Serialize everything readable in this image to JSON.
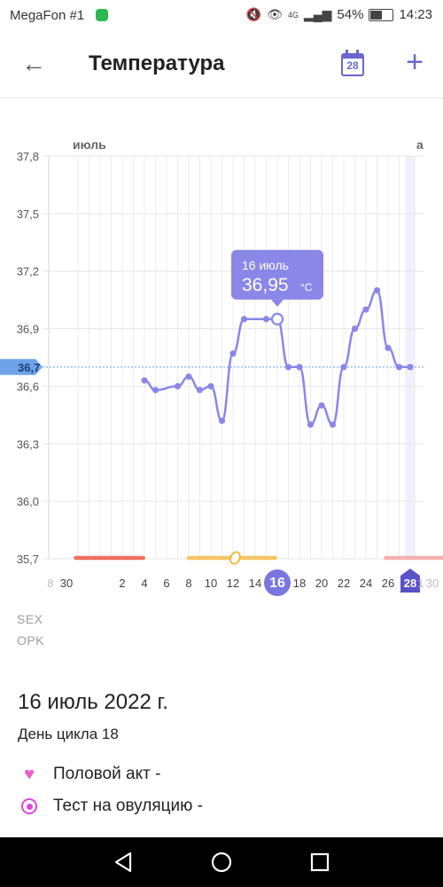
{
  "status_bar": {
    "carrier": "MegaFon #1",
    "network": "4G",
    "battery": "54%",
    "time": "14:23"
  },
  "app_bar": {
    "title": "Температура",
    "calendar_day": "28"
  },
  "chart_data": {
    "type": "line",
    "month_labels": [
      "июль",
      "а"
    ],
    "y_ticks": [
      "37,8",
      "37,5",
      "37,2",
      "36,9",
      "36,6",
      "36,3",
      "36,0",
      "35,7"
    ],
    "ylim": [
      35.7,
      37.8
    ],
    "baseline_label": "36,7",
    "baseline_value": 36.7,
    "x_tick_labels": [
      "8",
      "30",
      "2",
      "4",
      "6",
      "8",
      "10",
      "12",
      "14",
      "16",
      "18",
      "20",
      "22",
      "24",
      "26",
      "28",
      "30",
      "1"
    ],
    "series": [
      {
        "x": [
          4,
          5,
          7,
          8,
          9,
          10,
          11,
          12,
          13,
          15,
          16,
          17,
          18,
          19,
          20,
          21,
          22,
          23,
          24,
          25,
          26,
          27,
          28
        ],
        "values": [
          36.63,
          36.58,
          36.6,
          36.65,
          36.58,
          36.6,
          36.42,
          36.77,
          36.95,
          36.95,
          36.95,
          36.7,
          36.7,
          36.4,
          36.5,
          36.4,
          36.7,
          36.9,
          37.0,
          37.1,
          36.8,
          36.7,
          36.7
        ]
      }
    ],
    "selected": {
      "x": 16,
      "date_label": "16 июль",
      "value": "36,95",
      "unit": "°C"
    },
    "today_x": 28,
    "cycle_bars": [
      {
        "from": 28.8,
        "to": 3.9,
        "color": "#ef7060"
      },
      {
        "from": 8.0,
        "to": 11.8,
        "color": "#f8c466"
      },
      {
        "from": 12.8,
        "to": 15.8,
        "color": "#f8c466"
      },
      {
        "from": 25.8,
        "to": 31.2,
        "color": "#f5b0b0"
      }
    ],
    "ovulation_x": 12.2
  },
  "legend": {
    "sex": "SEX",
    "opk": "OPK"
  },
  "details": {
    "date": "16 июль 2022 г.",
    "cycle_day": "День цикла 18",
    "intercourse": "Половой акт -",
    "ovulation_test": "Тест на овуляцию -"
  },
  "colors": {
    "accent": "#6a66cc",
    "line": "#8b87e8",
    "today": "#5a52c8"
  }
}
